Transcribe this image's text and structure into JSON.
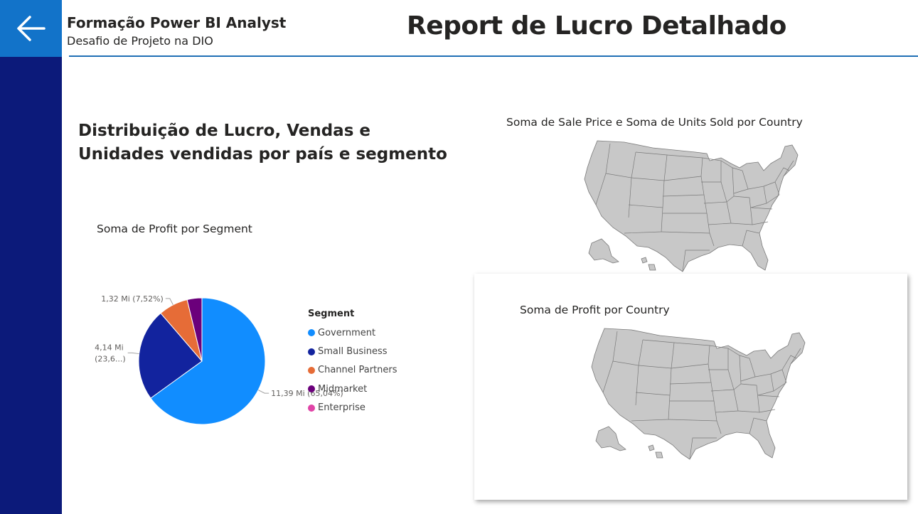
{
  "header": {
    "title": "Formação Power BI Analyst",
    "subtitle": "Desafio de Projeto na DIO",
    "report_title": "Report de Lucro Detalhado"
  },
  "nav": {
    "back_icon": "arrow-left-icon"
  },
  "section": {
    "title_line1": "Distribuição de Lucro, Vendas e",
    "title_line2": "Unidades vendidas por país e segmento"
  },
  "map_visuals": {
    "map1_title": "Soma de Sale Price e Soma de Units Sold por Country",
    "map2_title": "Soma de Profit por Country"
  },
  "chart_data": {
    "type": "pie",
    "title": "Soma de Profit por Segment",
    "legend_title": "Segment",
    "legend_position": "right",
    "categories": [
      "Government",
      "Small Business",
      "Channel Partners",
      "Midmarket",
      "Enterprise"
    ],
    "values": [
      11.39,
      4.14,
      1.32,
      0.66,
      0.0
    ],
    "percent": [
      65.04,
      23.6,
      7.52,
      3.8,
      0.0
    ],
    "colors": [
      "#118dff",
      "#12239e",
      "#e66c37",
      "#6b007b",
      "#e044a7"
    ],
    "data_labels": [
      {
        "category": "Government",
        "text": "11,39 Mi (65,04%)"
      },
      {
        "category": "Small Business",
        "text_line1": "4,14 Mi",
        "text_line2": "(23,6...)"
      },
      {
        "category": "Channel Partners",
        "text": "1,32 Mi (7,52%)"
      }
    ]
  }
}
